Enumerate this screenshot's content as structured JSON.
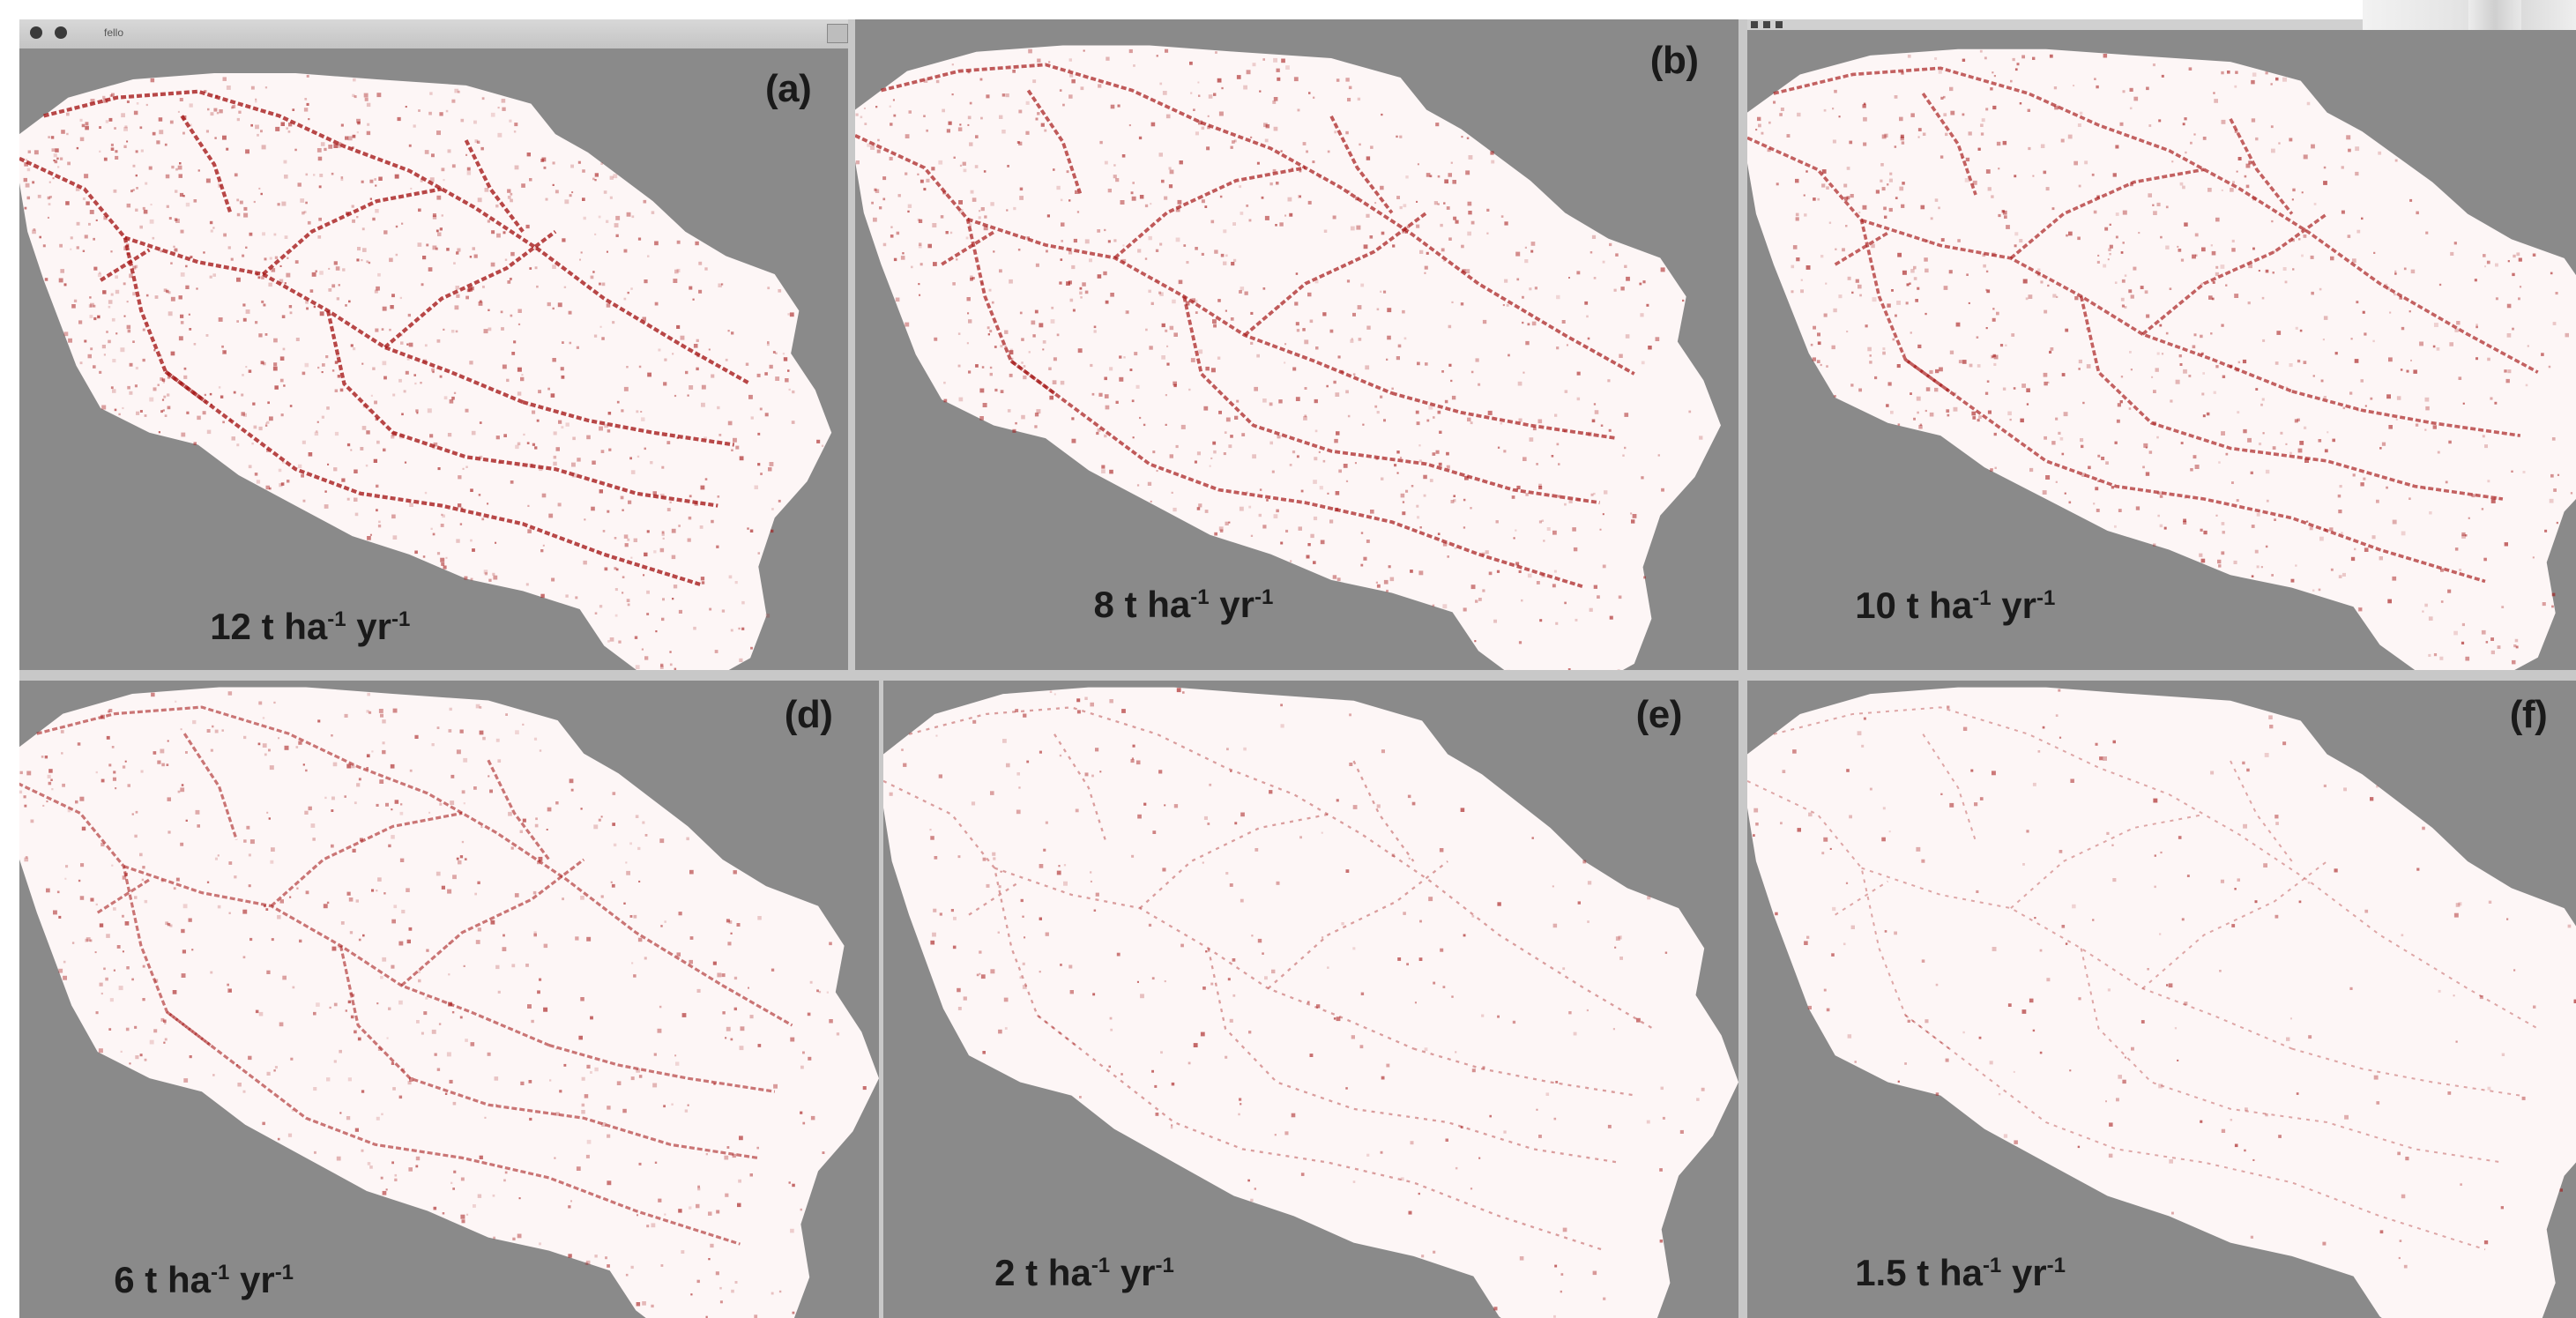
{
  "window": {
    "title": "fello"
  },
  "panels": [
    {
      "id": "a",
      "label": "(a)",
      "rate_value": "12",
      "rate_unit_t": "t",
      "rate_ha": "ha",
      "rate_ha_exp": "-1",
      "rate_yr": "yr",
      "rate_yr_exp": "-1",
      "density": 0.9
    },
    {
      "id": "b",
      "label": "(b)",
      "rate_value": "8",
      "rate_unit_t": "t",
      "rate_ha": "ha",
      "rate_ha_exp": "-1",
      "rate_yr": "yr",
      "rate_yr_exp": "-1",
      "density": 0.75
    },
    {
      "id": "c",
      "label": "",
      "rate_value": "10",
      "rate_unit_t": "t",
      "rate_ha": "ha",
      "rate_ha_exp": "-1",
      "rate_yr": "yr",
      "rate_yr_exp": "-1",
      "density": 0.7
    },
    {
      "id": "d",
      "label": "(d)",
      "rate_value": "6",
      "rate_unit_t": "t",
      "rate_ha": "ha",
      "rate_ha_exp": "-1",
      "rate_yr": "yr",
      "rate_yr_exp": "-1",
      "density": 0.55
    },
    {
      "id": "e",
      "label": "(e)",
      "rate_value": "2",
      "rate_unit_t": "t",
      "rate_ha": "ha",
      "rate_ha_exp": "-1",
      "rate_yr": "yr",
      "rate_yr_exp": "-1",
      "density": 0.25
    },
    {
      "id": "f",
      "label": "(f)",
      "rate_value": "1.5",
      "rate_unit_t": "t",
      "rate_ha": "ha",
      "rate_ha_exp": "-1",
      "rate_yr": "yr",
      "rate_yr_exp": "-1",
      "density": 0.18
    }
  ],
  "colors": {
    "background": "#8a8a8a",
    "watershed": "#fdf6f6",
    "stream": "#a51818"
  }
}
